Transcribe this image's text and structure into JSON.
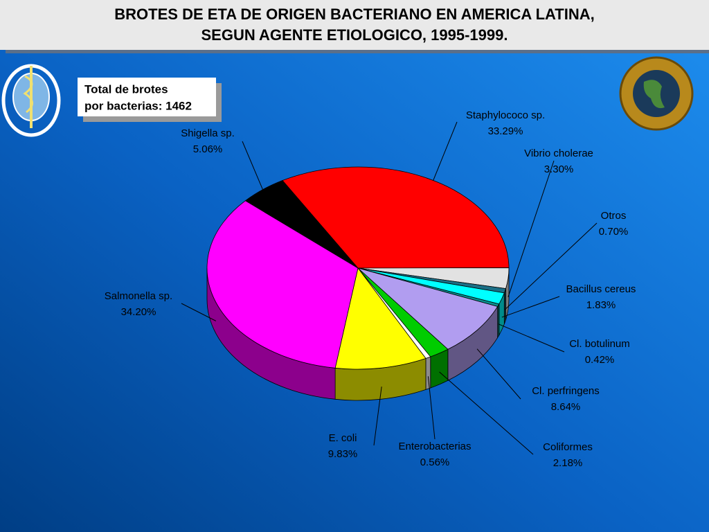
{
  "chart_data": {
    "type": "pie",
    "title": [
      "BROTES DE ETA DE ORIGEN BACTERIANO EN AMERICA LATINA,",
      "SEGUN AGENTE ETIOLOGICO, 1995-1999."
    ],
    "annotation": [
      "Total de brotes",
      "por bacterias: 1462"
    ],
    "categories": [
      "Staphylococo sp.",
      "Vibrio cholerae",
      "Otros",
      "Bacillus cereus",
      "Cl. botulinum",
      "Cl. perfringens",
      "Coliformes",
      "Enterobacterias",
      "E. coli",
      "Salmonella sp.",
      "Shigella sp."
    ],
    "values": [
      33.29,
      3.3,
      0.7,
      1.83,
      0.42,
      8.64,
      2.18,
      0.56,
      9.83,
      34.2,
      5.06
    ],
    "value_labels": [
      "33.29%",
      "3.30%",
      "0.70%",
      "1.83%",
      "0.42%",
      "8.64%",
      "2.18%",
      "0.56%",
      "9.83%",
      "34.20%",
      "5.06%"
    ],
    "colors": [
      "#ff0000",
      "#e2e2e2",
      "#1b6f86",
      "#00ffff",
      "#0a8f8f",
      "#b19df0",
      "#00cc00",
      "#ffffff",
      "#ffff00",
      "#ff00ff",
      "#000000"
    ]
  }
}
